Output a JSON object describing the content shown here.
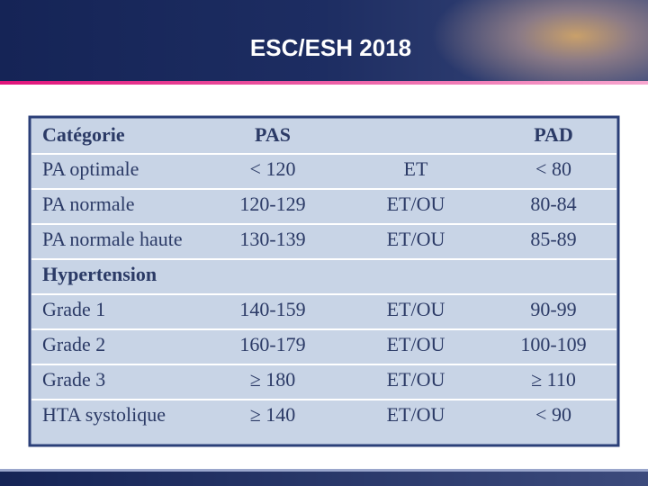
{
  "header": {
    "title": "ESC/ESH 2018"
  },
  "table": {
    "header": [
      "Catégorie",
      "PAS",
      "PAD"
    ],
    "groups": [
      {
        "rows": [
          [
            "PA optimale",
            "< 120",
            "ET",
            "< 80"
          ],
          [
            "PA normale",
            "120-129",
            "ET/OU",
            "80-84"
          ],
          [
            "PA normale haute",
            "130-139",
            "ET/OU",
            "85-89"
          ]
        ]
      },
      {
        "title": "Hypertension",
        "rows": [
          [
            "Grade 1",
            "140-159",
            "ET/OU",
            "90-99"
          ],
          [
            "Grade 2",
            "160-179",
            "ET/OU",
            "100-109"
          ],
          [
            "Grade 3",
            "≥ 180",
            "ET/OU",
            "≥ 110"
          ],
          [
            "HTA systolique",
            "≥ 140",
            "ET/OU",
            "< 90"
          ]
        ]
      }
    ]
  }
}
